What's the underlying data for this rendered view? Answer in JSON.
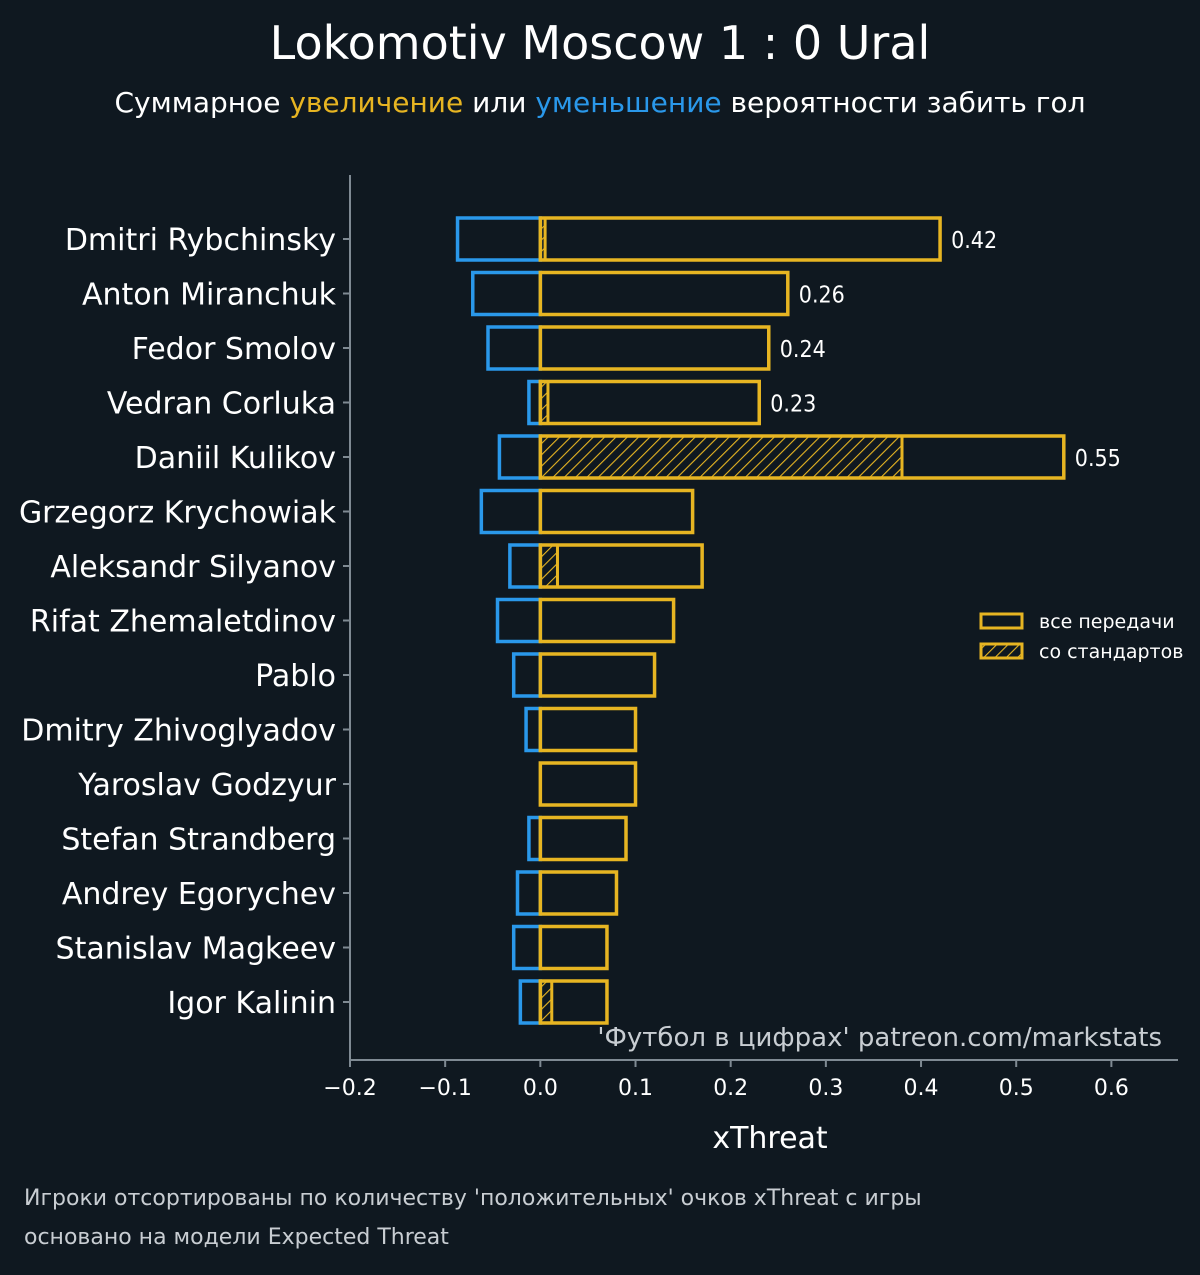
{
  "title": "Lokomotiv Moscow 1 : 0 Ural",
  "subtitle": {
    "prefix": "Суммарное ",
    "increase": "увеличение",
    "middle": " или ",
    "decrease": "уменьшение",
    "suffix": " вероятности забить гол"
  },
  "colors": {
    "background": "#0f1820",
    "positive": "#e7b522",
    "negative": "#2a98ea",
    "axis": "#7f8a93",
    "text": "#ffffff",
    "muted": "#c8cdd2"
  },
  "chart_data": {
    "type": "bar",
    "orientation": "horizontal",
    "xlabel": "xThreat",
    "xlim": [
      -0.2,
      0.67
    ],
    "xticks": [
      -0.2,
      -0.1,
      0.0,
      0.1,
      0.2,
      0.3,
      0.4,
      0.5,
      0.6
    ],
    "xtick_labels": [
      "−0.2",
      "−0.1",
      "0.0",
      "0.1",
      "0.2",
      "0.3",
      "0.4",
      "0.5",
      "0.6"
    ],
    "categories": [
      "Dmitri Rybchinsky",
      "Anton Miranchuk",
      "Fedor Smolov",
      "Vedran Corluka",
      "Daniil Kulikov",
      "Grzegorz Krychowiak",
      "Aleksandr Silyanov",
      "Rifat Zhemaletdinov",
      "Pablo",
      "Dmitry Zhivoglyadov",
      "Yaroslav Godzyur",
      "Stefan Strandberg",
      "Andrey Egorychev",
      "Stanislav Magkeev",
      "Igor Kalinin"
    ],
    "series": [
      {
        "name": "все передачи (positive)",
        "values": [
          0.42,
          0.26,
          0.24,
          0.23,
          0.55,
          0.16,
          0.17,
          0.14,
          0.12,
          0.1,
          0.1,
          0.09,
          0.08,
          0.07,
          0.07
        ]
      },
      {
        "name": "со стандартов (positive)",
        "values": [
          0.005,
          0.0,
          0.0,
          0.008,
          0.38,
          0.0,
          0.018,
          0.0,
          0.0,
          0.0,
          0.0,
          0.0,
          0.0,
          0.0,
          0.012
        ]
      },
      {
        "name": "negative",
        "values": [
          -0.087,
          -0.071,
          -0.055,
          -0.012,
          -0.043,
          -0.062,
          -0.032,
          -0.045,
          -0.028,
          -0.015,
          0.0,
          -0.012,
          -0.024,
          -0.028,
          -0.021
        ]
      }
    ],
    "value_labels": [
      {
        "category": "Dmitri Rybchinsky",
        "text": "0.42"
      },
      {
        "category": "Anton Miranchuk",
        "text": "0.26"
      },
      {
        "category": "Fedor Smolov",
        "text": "0.24"
      },
      {
        "category": "Vedran Corluka",
        "text": "0.23"
      },
      {
        "category": "Daniil Kulikov",
        "text": "0.55"
      }
    ],
    "legend": {
      "position": "right",
      "entries": [
        "все передачи",
        "со стандартов"
      ]
    },
    "watermark": "'Футбол в цифрах' patreon.com/markstats",
    "grid": false
  },
  "footnotes": [
    "Игроки отсортированы по количеству 'положительных' очков xThreat с игры",
    "основано на модели Expected Threat"
  ]
}
